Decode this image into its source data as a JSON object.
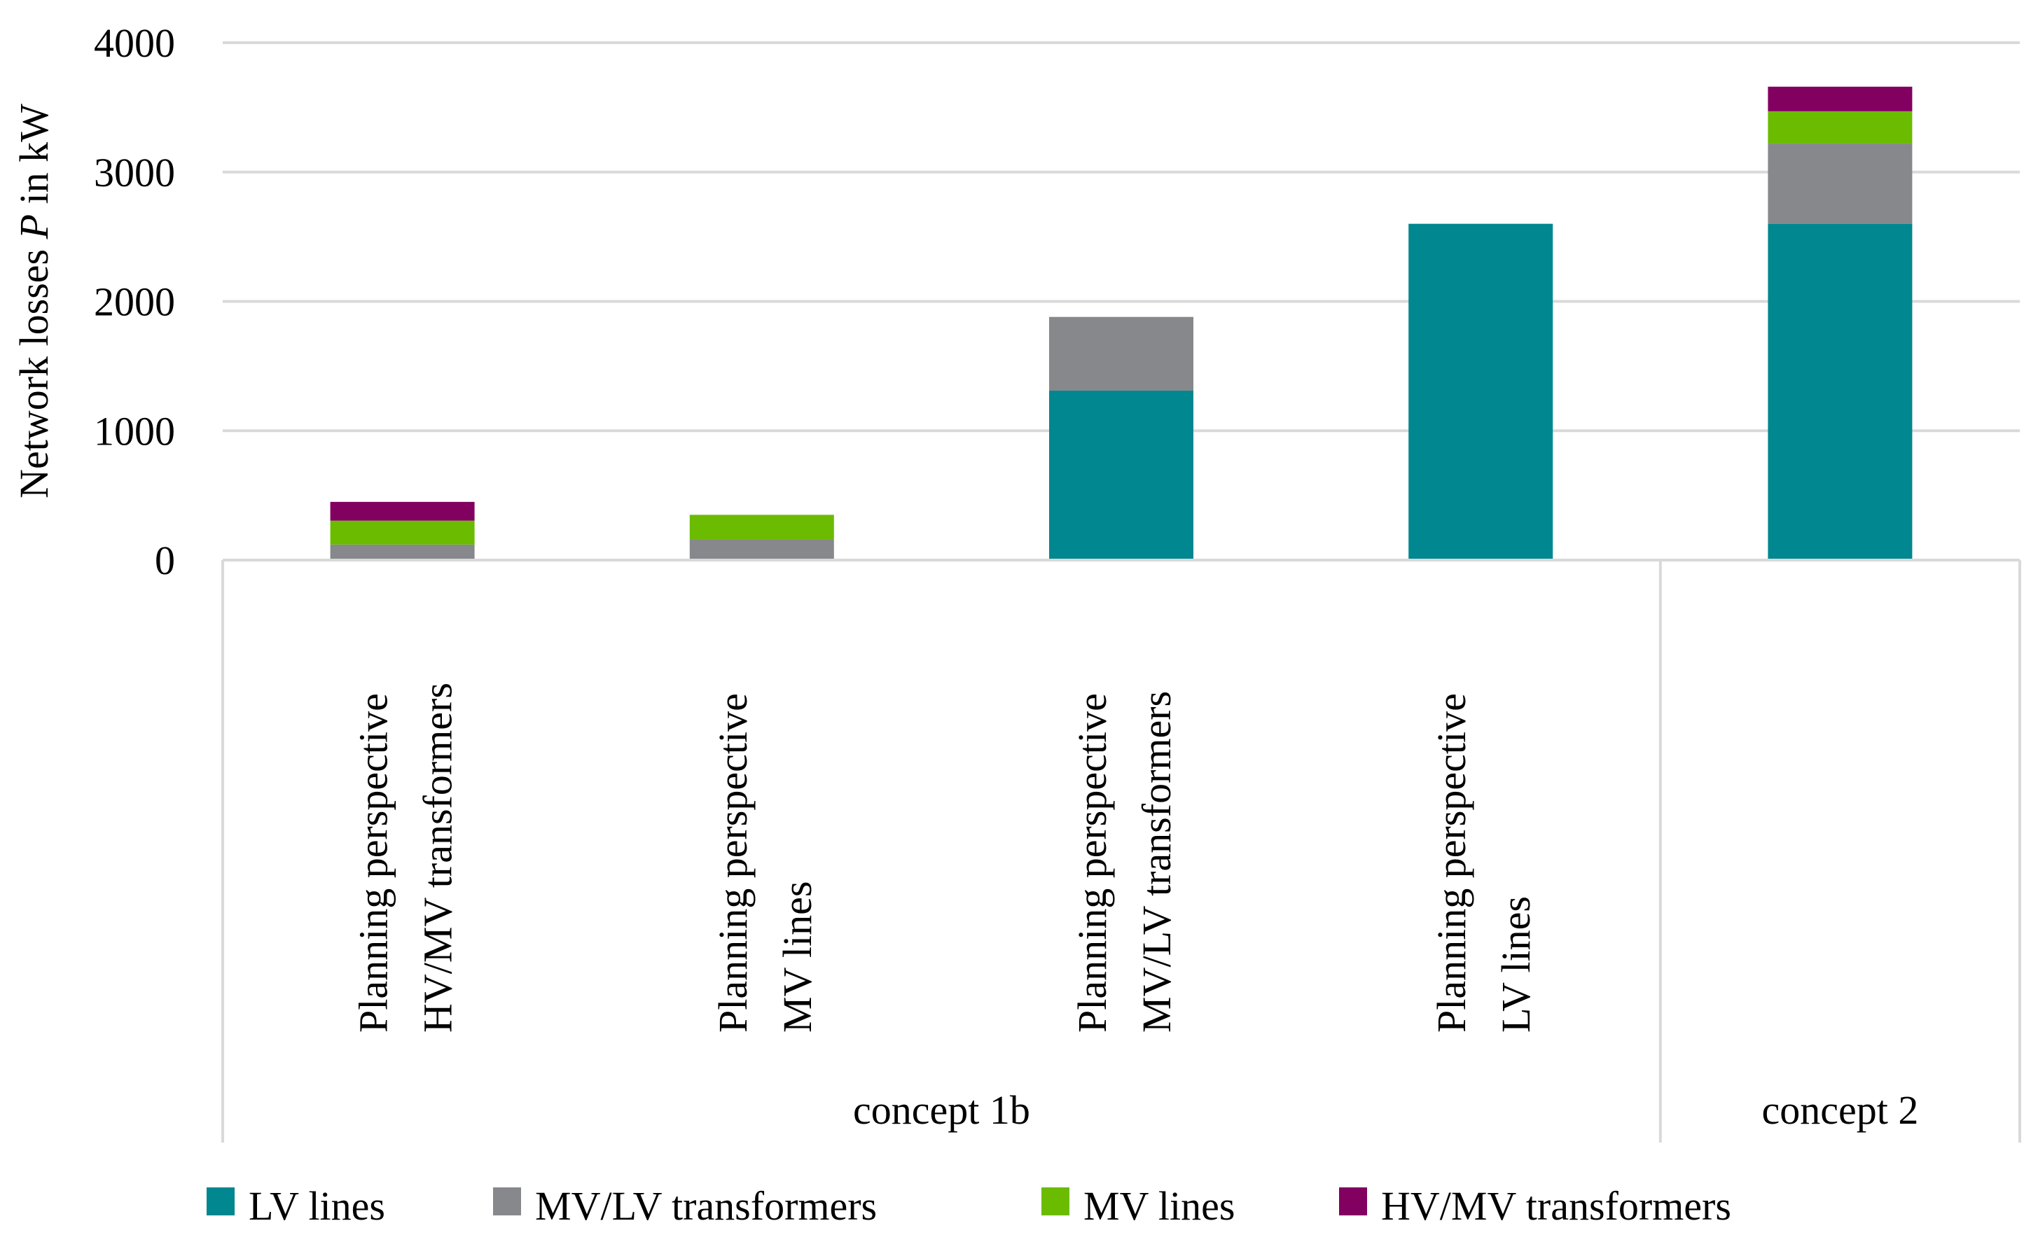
{
  "chart_data": {
    "type": "bar",
    "stacked": true,
    "title": "",
    "ylabel": "Network losses P in kW",
    "ylabel_parts": {
      "before": "Network losses ",
      "italic": "P",
      "after": " in kW"
    },
    "xlabel": "",
    "ylim": [
      0,
      4000
    ],
    "yticks": [
      0,
      1000,
      2000,
      3000,
      4000
    ],
    "grid": true,
    "categories": [
      {
        "line1": "Planning perspective",
        "line2": "HV/MV transformers"
      },
      {
        "line1": "Planning perspective",
        "line2": "MV lines"
      },
      {
        "line1": "Planning perspective",
        "line2": "MV/LV transformers"
      },
      {
        "line1": "Planning perspective",
        "line2": "LV lines"
      },
      {
        "line1": "",
        "line2": ""
      }
    ],
    "groups": [
      {
        "label": "concept 1b",
        "span": [
          0,
          3
        ]
      },
      {
        "label": "concept 2",
        "span": [
          4,
          4
        ]
      }
    ],
    "series": [
      {
        "name": "LV lines",
        "color": "#00878F",
        "values": [
          0,
          0,
          1310,
          2600,
          2600
        ]
      },
      {
        "name": "MV/LV transformers",
        "color": "#87888C",
        "values": [
          120,
          160,
          570,
          0,
          620
        ]
      },
      {
        "name": "MV lines",
        "color": "#6BBB00",
        "values": [
          185,
          190,
          0,
          0,
          250
        ]
      },
      {
        "name": "HV/MV transformers",
        "color": "#820060",
        "values": [
          145,
          0,
          0,
          0,
          190
        ]
      }
    ],
    "legend_position": "bottom"
  }
}
